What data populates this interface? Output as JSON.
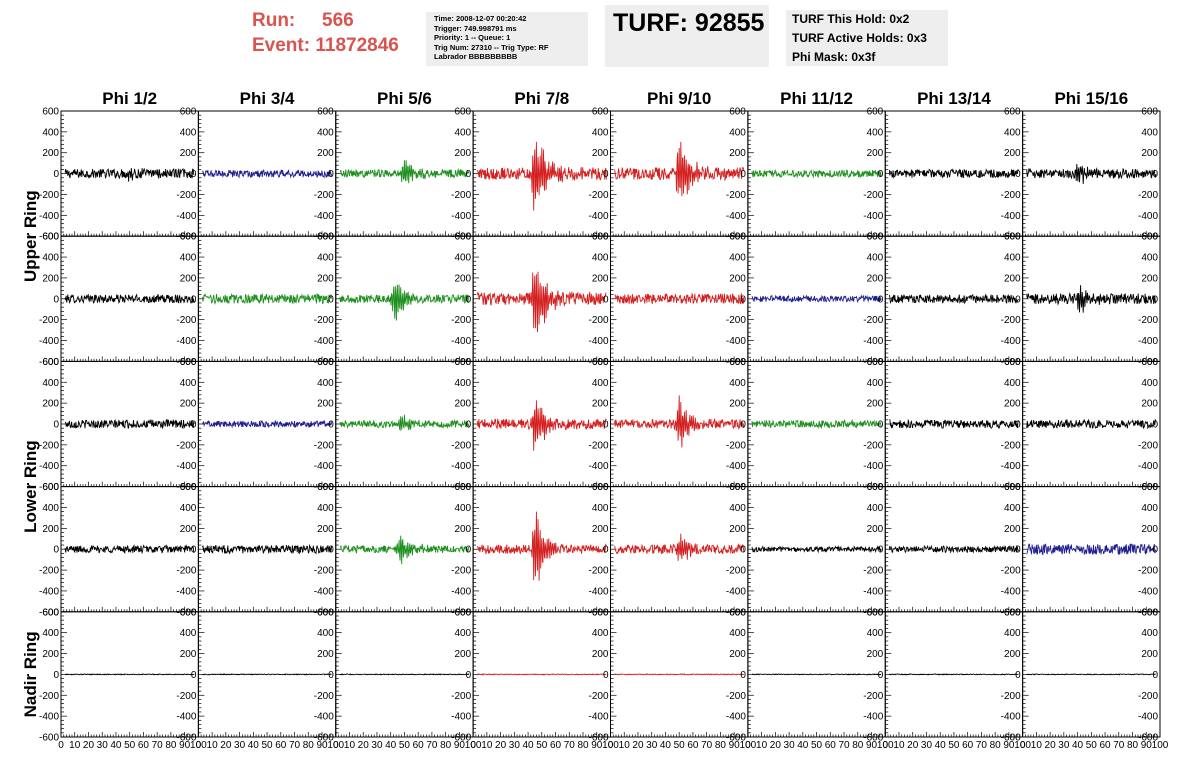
{
  "header": {
    "run_label": "Run:",
    "run_value": "566",
    "event_label": "Event:",
    "event_value": "11872846",
    "info_lines": [
      "Time: 2008-12-07 00:20:42",
      "Trigger: 749.998791 ms",
      "Priority: 1 -- Queue: 1",
      "Trig Num: 27310 -- Trig Type: RF",
      "Labrador BBBBBBBBB"
    ],
    "turf_text": "TURF: 92855",
    "turf_status": [
      "TURF This Hold: 0x2",
      "TURF Active Holds: 0x3",
      "Phi Mask: 0x3f"
    ]
  },
  "colors": {
    "black": "#000000",
    "blue": "#1f1f8f",
    "green": "#1f8f1f",
    "red": "#d42020",
    "run_text": "#d9534f",
    "panel_bg": "#eeeeee"
  },
  "chart_data": {
    "type": "line",
    "columns": [
      "Phi 1/2",
      "Phi 3/4",
      "Phi 5/6",
      "Phi 7/8",
      "Phi 9/10",
      "Phi 11/12",
      "Phi 13/14",
      "Phi 15/16"
    ],
    "rows": [
      "Upper Ring",
      "Upper Ring",
      "Lower Ring",
      "Lower Ring",
      "Nadir Ring"
    ],
    "row_labels": [
      "Upper Ring",
      "Lower Ring",
      "Nadir Ring"
    ],
    "xlim": [
      0,
      100
    ],
    "ylim": [
      -600,
      600
    ],
    "x_ticks": [
      0,
      10,
      20,
      30,
      40,
      50,
      60,
      70,
      80,
      90,
      100
    ],
    "y_ticks": [
      -600,
      -400,
      -200,
      0,
      200,
      400,
      600
    ],
    "grid": false,
    "panel_color_keys": [
      [
        "black",
        "blue",
        "green",
        "red",
        "red",
        "green",
        "black",
        "black"
      ],
      [
        "black",
        "green",
        "green",
        "red",
        "red",
        "blue",
        "black",
        "black"
      ],
      [
        "black",
        "blue",
        "green",
        "red",
        "red",
        "green",
        "black",
        "black"
      ],
      [
        "black",
        "black",
        "green",
        "red",
        "red",
        "black",
        "black",
        "blue"
      ],
      [
        "black",
        "black",
        "black",
        "red",
        "red",
        "black",
        "black",
        "black"
      ]
    ],
    "panel_noise_amplitude": [
      [
        45,
        35,
        40,
        60,
        60,
        35,
        40,
        45
      ],
      [
        40,
        45,
        40,
        60,
        50,
        30,
        40,
        50
      ],
      [
        40,
        30,
        35,
        50,
        45,
        35,
        40,
        40
      ],
      [
        35,
        40,
        35,
        45,
        45,
        25,
        30,
        50
      ],
      [
        4,
        4,
        4,
        4,
        4,
        4,
        4,
        4
      ]
    ],
    "panel_pulse": [
      [
        [
          50,
          70
        ],
        null,
        [
          50,
          150
        ],
        [
          45,
          550
        ],
        [
          50,
          430
        ],
        null,
        null,
        [
          40,
          110
        ]
      ],
      [
        null,
        null,
        [
          43,
          260
        ],
        [
          45,
          520
        ],
        null,
        null,
        null,
        [
          42,
          170
        ]
      ],
      [
        null,
        null,
        [
          48,
          110
        ],
        [
          45,
          320
        ],
        [
          50,
          300
        ],
        null,
        null,
        null
      ],
      [
        null,
        null,
        [
          47,
          180
        ],
        [
          45,
          420
        ],
        [
          50,
          150
        ],
        null,
        null,
        null
      ],
      [
        null,
        null,
        null,
        null,
        null,
        null,
        null,
        null
      ]
    ]
  }
}
